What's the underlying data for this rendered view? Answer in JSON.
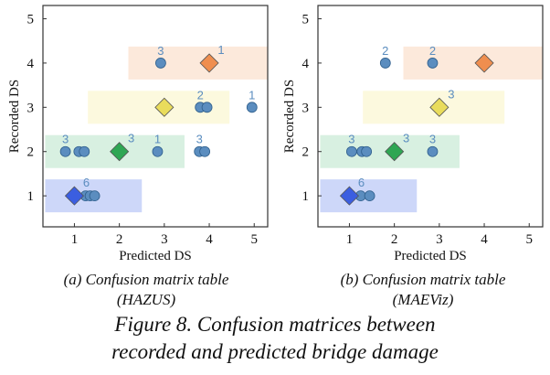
{
  "chart_data": [
    {
      "type": "scatter",
      "xlabel": "Predicted DS",
      "ylabel": "Recorded DS",
      "xticks": [
        "1",
        "2",
        "3",
        "4",
        "5"
      ],
      "yticks": [
        "1",
        "2",
        "3",
        "4",
        "5"
      ],
      "xlim": [
        0.3,
        5.3
      ],
      "ylim": [
        0.3,
        5.3
      ],
      "grid": false,
      "bands": [
        {
          "level": 1,
          "x_range": [
            0.35,
            2.5
          ],
          "color": "#6f8bef"
        },
        {
          "level": 2,
          "x_range": [
            0.35,
            3.45
          ],
          "color": "#8fd3a8"
        },
        {
          "level": 3,
          "x_range": [
            1.3,
            4.45
          ],
          "color": "#f6efa0"
        },
        {
          "level": 4,
          "x_range": [
            2.2,
            5.3
          ],
          "color": "#f7bf98"
        }
      ],
      "diagonal_points": [
        {
          "x": 1,
          "y": 1,
          "count": "6",
          "color": "#3b5ee0"
        },
        {
          "x": 2,
          "y": 2,
          "count": "3",
          "color": "#2ea653"
        },
        {
          "x": 3,
          "y": 3,
          "count": "",
          "color": "#e9dc5c"
        },
        {
          "x": 4,
          "y": 4,
          "count": "1",
          "color": "#ef8e4f"
        }
      ],
      "off_diagonal_points": [
        {
          "x": 1.25,
          "y": 1,
          "count": ""
        },
        {
          "x": 1.35,
          "y": 1,
          "count": ""
        },
        {
          "x": 1.45,
          "y": 1,
          "count": ""
        },
        {
          "x": 0.8,
          "y": 2,
          "count": "3"
        },
        {
          "x": 1.1,
          "y": 2,
          "count": ""
        },
        {
          "x": 1.22,
          "y": 2,
          "count": ""
        },
        {
          "x": 2.85,
          "y": 2,
          "count": "1"
        },
        {
          "x": 3.78,
          "y": 2,
          "count": "3"
        },
        {
          "x": 3.9,
          "y": 2,
          "count": ""
        },
        {
          "x": 3.8,
          "y": 3,
          "count": "2"
        },
        {
          "x": 3.95,
          "y": 3,
          "count": ""
        },
        {
          "x": 4.95,
          "y": 3,
          "count": "1"
        },
        {
          "x": 2.92,
          "y": 4,
          "count": "3"
        }
      ]
    },
    {
      "type": "scatter",
      "xlabel": "Predicted DS",
      "ylabel": "Recorded DS",
      "xticks": [
        "1",
        "2",
        "3",
        "4",
        "5"
      ],
      "yticks": [
        "1",
        "2",
        "3",
        "4",
        "5"
      ],
      "xlim": [
        0.3,
        5.3
      ],
      "ylim": [
        0.3,
        5.3
      ],
      "grid": false,
      "bands": [
        {
          "level": 1,
          "x_range": [
            0.35,
            2.5
          ],
          "color": "#6f8bef"
        },
        {
          "level": 2,
          "x_range": [
            0.35,
            3.45
          ],
          "color": "#8fd3a8"
        },
        {
          "level": 3,
          "x_range": [
            1.3,
            4.45
          ],
          "color": "#f6efa0"
        },
        {
          "level": 4,
          "x_range": [
            2.2,
            5.3
          ],
          "color": "#f7bf98"
        }
      ],
      "diagonal_points": [
        {
          "x": 1,
          "y": 1,
          "count": "6",
          "color": "#3b5ee0"
        },
        {
          "x": 2,
          "y": 2,
          "count": "3",
          "color": "#2ea653"
        },
        {
          "x": 3,
          "y": 3,
          "count": "3",
          "color": "#e9dc5c"
        },
        {
          "x": 4,
          "y": 4,
          "count": "",
          "color": "#ef8e4f"
        }
      ],
      "off_diagonal_points": [
        {
          "x": 1.25,
          "y": 1,
          "count": ""
        },
        {
          "x": 1.45,
          "y": 1,
          "count": ""
        },
        {
          "x": 1.05,
          "y": 2,
          "count": "3"
        },
        {
          "x": 1.28,
          "y": 2,
          "count": ""
        },
        {
          "x": 1.38,
          "y": 2,
          "count": ""
        },
        {
          "x": 2.85,
          "y": 2,
          "count": "3"
        },
        {
          "x": 1.8,
          "y": 4,
          "count": "2"
        },
        {
          "x": 2.85,
          "y": 4,
          "count": "2"
        }
      ]
    }
  ],
  "captions": {
    "a_line1": "(a) Confusion matrix table",
    "a_line2": "(HAZUS)",
    "b_line1": "(b) Confusion matrix table",
    "b_line2": "(MAEViz)",
    "figure_line1": "Figure 8. Confusion matrices between",
    "figure_line2": "recorded and predicted bridge damage"
  },
  "colors": {
    "off_diagonal_point": "#5b8dbf",
    "count_label": "#5b8dbf",
    "axis": "#333333"
  }
}
